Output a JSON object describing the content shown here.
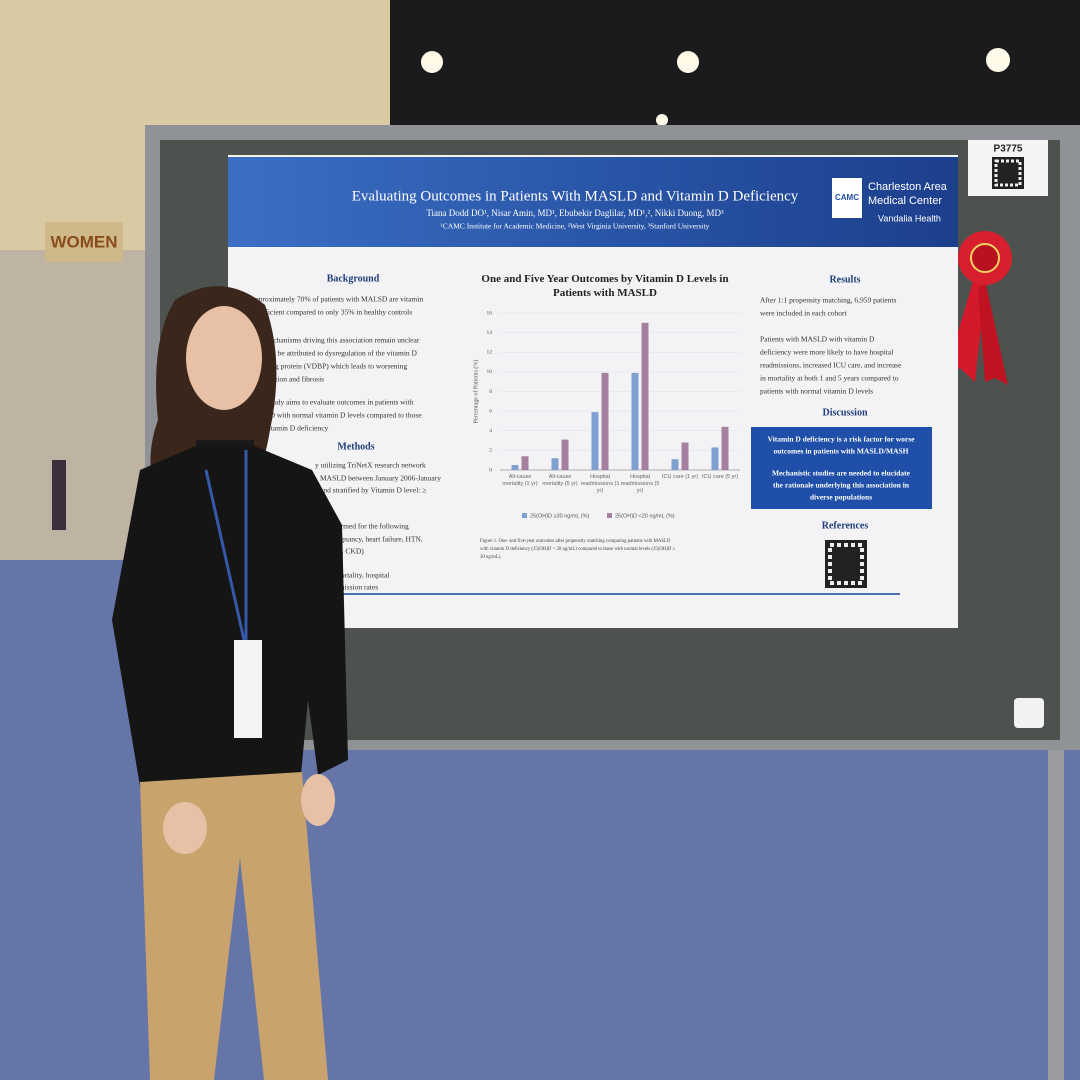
{
  "scene": {
    "restroom_sign": "WOMEN",
    "board_number": "P3775"
  },
  "poster": {
    "title": "Evaluating Outcomes in Patients With MASLD and Vitamin D Deficiency",
    "authors": "Tiana Dodd DO¹, Nisar Amin, MD¹, Ebubekir Daglilar, MD¹,², Nikki Duong, MD³",
    "affiliations": "¹CAMC Institute for Academic Medicine, ²West Virginia University, ³Stanford University",
    "logo": {
      "mark": "CAMC",
      "name_lines": [
        "Charleston Area",
        "Medical Center"
      ],
      "sub": "Vandalia Health"
    },
    "background": {
      "heading": "Background",
      "lines": [
        "pproximately 70% of patients with MALSD are vitamin",
        "eficient compared to only 35% in healthy controls",
        "echanisms driving this association remain unclear",
        "d be attributed to dysregulation of the vitamin D",
        "g protein (VDBP) which leads to worsening",
        "ation and fibrosis",
        "study aims to evaluate outcomes in patients with",
        "LD with normal vitamin D levels compared to those",
        "vitamin D deficiency"
      ]
    },
    "methods": {
      "heading": "Methods",
      "lines": [
        "y utilizing TriNetX research network",
        "MASLD between January 2006-January",
        "and stratified by Vitamin D level: ≥",
        "s performed for the following",
        "e, malignancy, heart failure, HTN,",
        "disease, CKD)",
        "mortality, hospital",
        "dmission rates"
      ]
    },
    "results": {
      "heading": "Results",
      "lines": [
        "After 1:1 propensity matching, 6,959 patients",
        "were included in each cohort",
        "Patients with MASLD with vitamin D",
        "deficiency were more likely to have hospital",
        "readmissions, increased ICU care, and increase",
        "in mortality at both 1 and 5 years compared to",
        "patients with normal vitamin D levels"
      ]
    },
    "discussion": {
      "heading": "Discussion",
      "lines": [
        "Vitamin D deficiency is a risk factor for worse",
        "outcomes in patients with MASLD/MASH",
        "Mechanistic studies are needed to elucidate",
        "the rationale underlying this association in",
        "diverse populations"
      ]
    },
    "references": {
      "heading": "References"
    },
    "figure_caption": [
      "Figure 1. One- and five-year outcomes after propensity matching comparing patients with MASLD",
      "with vitamin D deficiency (25(OH)D < 20 ng/mL) compared to those with normal levels (25(OH)D ≥",
      "30 ng/mL)."
    ]
  },
  "chart_data": {
    "type": "bar",
    "title": "One and Five Year Outcomes by Vitamin D Levels in Patients with MASLD",
    "ylabel": "Percentage of Patients (%)",
    "categories": [
      "All-cause mortality (1 yr)",
      "All-cause mortality (5 yr)",
      "Hospital readmissions (1 yr)",
      "Hospital readmissions (5 yr)",
      "ICU care (1 yr)",
      "ICU care (5 yr)"
    ],
    "series": [
      {
        "name": "25(OH)D ≥30 ng/mL (%)",
        "color": "#7f9fd0",
        "values": [
          0.5,
          1.2,
          5.9,
          9.9,
          1.1,
          2.3
        ]
      },
      {
        "name": "25(OH)D <20 ng/mL (%)",
        "color": "#a5809f",
        "values": [
          1.4,
          3.1,
          9.9,
          15,
          2.8,
          4.4
        ]
      }
    ],
    "ylim": [
      0,
      16
    ],
    "yticks": [
      0,
      2,
      4,
      6,
      8,
      10,
      12,
      14,
      16
    ],
    "grid": true
  }
}
